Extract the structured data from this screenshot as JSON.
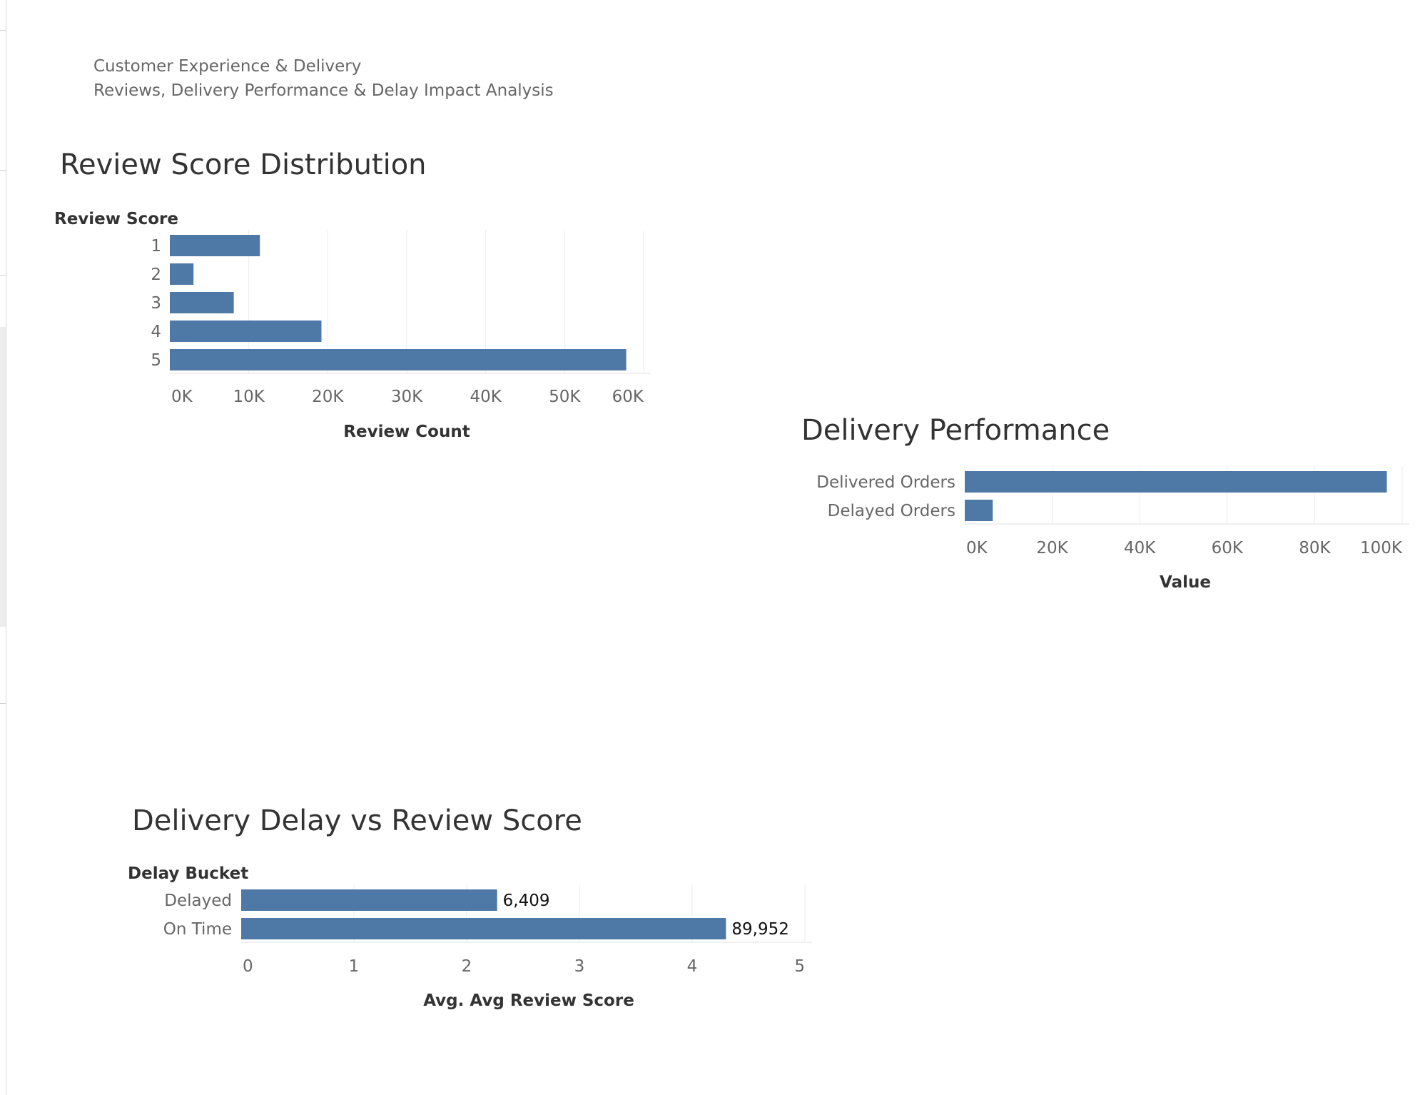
{
  "header": {
    "line1": "Customer Experience & Delivery",
    "line2": "Reviews, Delivery Performance & Delay Impact Analysis"
  },
  "colors": {
    "bar": "#4e79a7",
    "grid": "#ebebeb",
    "axis_text": "#666666",
    "title_text": "#333333"
  },
  "chart_data": [
    {
      "id": "review_score_distribution",
      "type": "bar",
      "orientation": "horizontal",
      "title": "Review Score Distribution",
      "ylabel": "Review Score",
      "xlabel": "Review Count",
      "categories": [
        "1",
        "2",
        "3",
        "4",
        "5"
      ],
      "values": [
        11400,
        3000,
        8100,
        19200,
        57800
      ],
      "xlim": [
        0,
        60000
      ],
      "xticks": [
        0,
        10000,
        20000,
        30000,
        40000,
        50000,
        60000
      ],
      "xtick_labels": [
        "0K",
        "10K",
        "20K",
        "30K",
        "40K",
        "50K",
        "60K"
      ],
      "grid": true
    },
    {
      "id": "delivery_performance",
      "type": "bar",
      "orientation": "horizontal",
      "title": "Delivery Performance",
      "ylabel": "",
      "xlabel": "Value",
      "categories": [
        "Delivered Orders",
        "Delayed Orders"
      ],
      "values": [
        96500,
        6400
      ],
      "xlim": [
        0,
        100000
      ],
      "xticks": [
        0,
        20000,
        40000,
        60000,
        80000,
        100000
      ],
      "xtick_labels": [
        "0K",
        "20K",
        "40K",
        "60K",
        "80K",
        "100K"
      ],
      "grid": true
    },
    {
      "id": "delivery_delay_vs_review_score",
      "type": "bar",
      "orientation": "horizontal",
      "title": "Delivery Delay vs Review Score",
      "ylabel": "Delay Bucket",
      "xlabel": "Avg. Avg Review Score",
      "categories": [
        "Delayed",
        "On Time"
      ],
      "values": [
        2.27,
        4.3
      ],
      "data_labels": [
        "6,409",
        "89,952"
      ],
      "xlim": [
        0,
        5
      ],
      "xticks": [
        0,
        1,
        2,
        3,
        4,
        5
      ],
      "xtick_labels": [
        "0",
        "1",
        "2",
        "3",
        "4",
        "5"
      ],
      "grid": true
    }
  ]
}
